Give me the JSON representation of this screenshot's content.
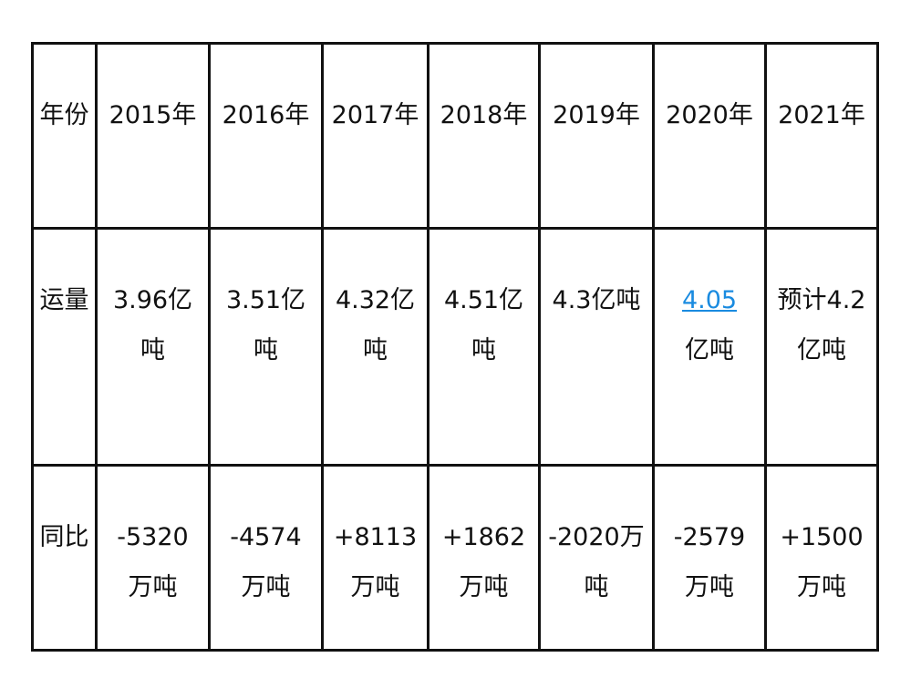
{
  "table": {
    "row_headers": [
      "年份",
      "运量",
      "同比"
    ],
    "years": [
      "2015年",
      "2016年",
      "2017年",
      "2018年",
      "2019年",
      "2020年",
      "2021年"
    ],
    "volumes": [
      {
        "text": "3.96亿吨"
      },
      {
        "text": "3.51亿吨"
      },
      {
        "text": "4.32亿吨"
      },
      {
        "text": "4.51亿吨"
      },
      {
        "text": "4.3亿吨"
      },
      {
        "link": "4.05",
        "text": "亿吨"
      },
      {
        "text": "预计4.2亿吨"
      }
    ],
    "yoy": [
      "-5320万吨",
      "-4574万吨",
      "+8113万吨",
      "+1862万吨",
      "-2020万吨",
      "-2579万吨",
      "+1500万吨"
    ]
  },
  "colors": {
    "link": "#1a8be0",
    "border": "#111111"
  }
}
